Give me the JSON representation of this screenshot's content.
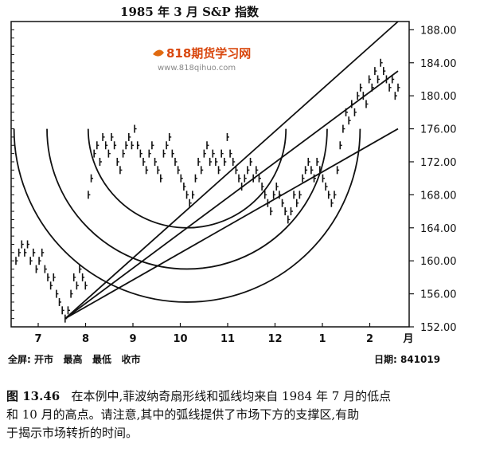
{
  "chart_data": {
    "type": "line",
    "title": "1985 年 3 月 S&P 指数",
    "watermark": {
      "brand": "818期货学习网",
      "url": "www.818qihuo.com"
    },
    "x_tick_labels": [
      "7",
      "8",
      "9",
      "10",
      "11",
      "12",
      "1",
      "2",
      "月"
    ],
    "y_ticks": [
      "152.00",
      "156.00",
      "160.00",
      "164.00",
      "168.00",
      "172.00",
      "176.00",
      "180.00",
      "184.00",
      "188.00"
    ],
    "ylim": [
      152,
      189
    ],
    "grid": false,
    "footer_left": "全屏: 开市   最高   最低   收市",
    "footer_right": "日期: 841019",
    "series": [
      {
        "values": [
          160,
          161,
          162,
          161,
          162,
          160,
          161,
          159,
          160,
          161,
          159,
          158,
          157,
          158,
          156,
          155,
          154,
          153,
          154,
          156,
          158,
          157,
          159,
          158,
          157,
          168,
          170,
          173,
          174,
          172,
          175,
          174,
          173,
          175,
          174,
          172,
          171,
          173,
          174,
          175,
          174,
          176,
          174,
          173,
          172,
          171,
          173,
          174,
          172,
          171,
          170,
          173,
          174,
          175,
          173,
          172,
          171,
          170,
          169,
          168,
          167,
          168,
          170,
          172,
          171,
          173,
          174,
          172,
          173,
          172,
          171,
          173,
          172,
          175,
          173,
          172,
          171,
          170,
          169,
          170,
          171,
          172,
          170,
          171,
          170,
          169,
          168,
          167,
          166,
          168,
          169,
          168,
          167,
          166,
          165,
          166,
          168,
          167,
          168,
          170,
          171,
          172,
          171,
          170,
          172,
          171,
          170,
          169,
          168,
          167,
          168,
          171,
          174,
          176,
          178,
          177,
          179,
          178,
          180,
          181,
          180,
          179,
          182,
          181,
          183,
          182,
          184,
          183,
          182,
          181,
          182,
          180,
          181
        ]
      }
    ],
    "fan_lines_end_values": [
      189,
      183,
      176
    ],
    "arc_bottom_values": [
      164,
      159,
      155
    ]
  },
  "caption": {
    "label": "图 13.46",
    "line1": "在本例中,菲波纳奇扇形线和弧线均来自 1984 年 7 月的低点",
    "line2": "和 10 月的高点。请注意,其中的弧线提供了市场下方的支撑区,有助",
    "line3": "于揭示市场转折的时间。"
  }
}
